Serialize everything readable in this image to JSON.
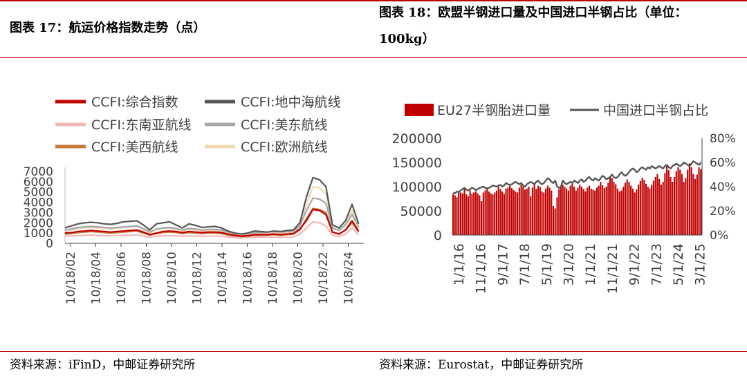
{
  "left_panel": {
    "title": "图表 17：航运价格指数走势（点）",
    "source": "资料来源：iFinD，中邮证券研究所"
  },
  "right_panel": {
    "title": "图表 18：欧盟半钢进口量及中国进口半钢占比（单位：100kg）",
    "source": "资料来源：Eurostat，中邮证券研究所"
  },
  "colors": {
    "accent_red": "#c00000",
    "ccfi_composite": "#c00000",
    "ccfi_mediterranean": "#555555",
    "ccfi_southeast_asia": "#f2b8b8",
    "ccfi_us_east": "#a6a6a6",
    "ccfi_us_west": "#c27a3f",
    "ccfi_europe": "#f0d9b5",
    "china_share_line": "#555555"
  },
  "chart_data": [
    {
      "type": "line",
      "title": "",
      "legend_position": "top",
      "x_ticks": [
        "10/18/02",
        "10/18/04",
        "10/18/06",
        "10/18/08",
        "10/18/10",
        "10/18/12",
        "10/18/14",
        "10/18/16",
        "10/18/18",
        "10/18/20",
        "10/18/22",
        "10/18/24"
      ],
      "y_ticks": [
        0,
        1000,
        2000,
        3000,
        4000,
        5000,
        6000,
        7000
      ],
      "ylim": [
        0,
        7000
      ],
      "x_years": [
        2002.8,
        2003.3,
        2003.8,
        2004.3,
        2004.8,
        2005.3,
        2005.8,
        2006.3,
        2006.8,
        2007.3,
        2007.8,
        2008.3,
        2008.8,
        2009.3,
        2009.8,
        2010.3,
        2010.8,
        2011.3,
        2011.8,
        2012.3,
        2012.8,
        2013.3,
        2013.8,
        2014.3,
        2014.8,
        2015.3,
        2015.8,
        2016.3,
        2016.8,
        2017.3,
        2017.8,
        2018.3,
        2018.8,
        2019.3,
        2019.8,
        2020.3,
        2020.8,
        2021.3,
        2021.8,
        2022.3,
        2022.8,
        2023.3,
        2023.8,
        2024.3,
        2024.8,
        2025.3
      ],
      "series": [
        {
          "name": "CCFI:综合指数",
          "values": [
            1000,
            1050,
            1150,
            1200,
            1250,
            1200,
            1150,
            1100,
            1150,
            1200,
            1250,
            1300,
            1100,
            850,
            1000,
            1150,
            1200,
            1150,
            1050,
            1150,
            1100,
            1050,
            1100,
            1100,
            1050,
            900,
            800,
            700,
            750,
            850,
            850,
            850,
            900,
            850,
            900,
            950,
            1400,
            2200,
            3300,
            3200,
            2800,
            1100,
            900,
            1300,
            2200,
            1200
          ]
        },
        {
          "name": "CCFI:地中海航线",
          "values": [
            1500,
            1700,
            1900,
            2000,
            2050,
            2000,
            1900,
            1850,
            1950,
            2100,
            2150,
            2200,
            1800,
            1300,
            1900,
            2000,
            2100,
            1800,
            1500,
            1900,
            1750,
            1550,
            1600,
            1650,
            1500,
            1200,
            1000,
            900,
            1000,
            1200,
            1150,
            1100,
            1200,
            1150,
            1250,
            1300,
            2000,
            4500,
            6400,
            6200,
            5500,
            1800,
            1500,
            2200,
            3800,
            1900
          ]
        },
        {
          "name": "CCFI:东南亚航线",
          "values": [
            700,
            720,
            750,
            780,
            800,
            780,
            760,
            740,
            760,
            780,
            800,
            820,
            720,
            600,
            700,
            750,
            760,
            740,
            700,
            720,
            700,
            680,
            690,
            700,
            680,
            620,
            560,
            520,
            560,
            600,
            600,
            600,
            620,
            600,
            620,
            640,
            900,
            1500,
            2100,
            2000,
            1700,
            800,
            650,
            900,
            1500,
            800
          ]
        },
        {
          "name": "CCFI:美东航线",
          "values": [
            1300,
            1400,
            1550,
            1600,
            1650,
            1600,
            1550,
            1500,
            1550,
            1600,
            1650,
            1700,
            1450,
            1100,
            1400,
            1500,
            1550,
            1450,
            1300,
            1450,
            1400,
            1300,
            1350,
            1350,
            1300,
            1100,
            1000,
            900,
            950,
            1050,
            1050,
            1100,
            1150,
            1100,
            1150,
            1200,
            1700,
            3200,
            4400,
            4300,
            3900,
            1500,
            1300,
            1800,
            2800,
            1600
          ]
        },
        {
          "name": "CCFI:美西航线",
          "values": [
            900,
            950,
            1050,
            1100,
            1150,
            1100,
            1050,
            1000,
            1050,
            1100,
            1150,
            1200,
            1000,
            800,
            950,
            1050,
            1100,
            1050,
            950,
            1050,
            1000,
            950,
            1000,
            1000,
            950,
            800,
            720,
            650,
            700,
            780,
            780,
            800,
            850,
            800,
            850,
            900,
            1300,
            2400,
            3400,
            3300,
            3000,
            1100,
            900,
            1300,
            2000,
            1100
          ]
        },
        {
          "name": "CCFI:欧洲航线",
          "values": [
            1200,
            1300,
            1450,
            1500,
            1550,
            1500,
            1450,
            1400,
            1450,
            1550,
            1600,
            1650,
            1350,
            1000,
            1350,
            1450,
            1500,
            1350,
            1150,
            1400,
            1300,
            1200,
            1250,
            1250,
            1150,
            950,
            800,
            750,
            850,
            950,
            950,
            950,
            1000,
            950,
            1050,
            1100,
            1700,
            3800,
            5500,
            5400,
            4800,
            1500,
            1200,
            1900,
            3200,
            1500
          ]
        }
      ]
    },
    {
      "type": "bar+line",
      "title": "",
      "legend_position": "top",
      "x_ticks": [
        "1/1/16",
        "11/1/16",
        "9/1/17",
        "7/1/18",
        "5/1/19",
        "3/1/20",
        "1/1/21",
        "11/1/21",
        "9/1/22",
        "7/1/23",
        "5/1/24",
        "3/1/25"
      ],
      "y_left_ticks": [
        "0",
        "50000",
        "100000",
        "150000",
        "200000"
      ],
      "y_right_ticks": [
        "0%",
        "20%",
        "40%",
        "60%",
        "80%"
      ],
      "ylim_left": [
        0,
        200000
      ],
      "ylim_right": [
        0,
        0.8
      ],
      "series": [
        {
          "name": "EU27半钢胎进口量",
          "type": "bar",
          "axis": "left",
          "values": [
            85000,
            82000,
            78000,
            90000,
            88000,
            86000,
            95000,
            84000,
            80000,
            92000,
            85000,
            88000,
            90000,
            86000,
            82000,
            70000,
            88000,
            92000,
            95000,
            90000,
            86000,
            84000,
            88000,
            92000,
            100000,
            95000,
            90000,
            85000,
            96000,
            98000,
            102000,
            97000,
            93000,
            90000,
            88000,
            98000,
            104000,
            100000,
            94000,
            96000,
            100000,
            80000,
            98000,
            105000,
            95000,
            102000,
            99000,
            90000,
            88000,
            96000,
            102000,
            98000,
            92000,
            60000,
            55000,
            78000,
            95000,
            99000,
            104000,
            100000,
            96000,
            92000,
            102000,
            106000,
            100000,
            92000,
            98000,
            104000,
            100000,
            95000,
            90000,
            98000,
            102000,
            96000,
            94000,
            92000,
            98000,
            102000,
            110000,
            103000,
            97000,
            100000,
            108000,
            120000,
            118000,
            110000,
            105000,
            96000,
            90000,
            92000,
            100000,
            108000,
            115000,
            110000,
            102000,
            96000,
            88000,
            94000,
            104000,
            112000,
            118000,
            114000,
            106000,
            100000,
            96000,
            104000,
            112000,
            120000,
            126000,
            116000,
            104000,
            110000,
            128000,
            142000,
            134000,
            120000,
            110000,
            120000,
            132000,
            140000,
            135000,
            126000,
            110000,
            118000,
            135000,
            148000,
            140000,
            126000,
            116000,
            125000,
            140000,
            136000
          ]
        },
        {
          "name": "中国进口半钢占比",
          "type": "line",
          "axis": "right",
          "values": [
            0.35,
            0.345,
            0.36,
            0.355,
            0.37,
            0.38,
            0.39,
            0.375,
            0.37,
            0.38,
            0.39,
            0.385,
            0.37,
            0.38,
            0.39,
            0.395,
            0.4,
            0.39,
            0.385,
            0.39,
            0.4,
            0.41,
            0.405,
            0.4,
            0.41,
            0.415,
            0.4,
            0.41,
            0.43,
            0.42,
            0.415,
            0.42,
            0.43,
            0.44,
            0.43,
            0.42,
            0.43,
            0.41,
            0.4,
            0.42,
            0.43,
            0.44,
            0.43,
            0.42,
            0.44,
            0.45,
            0.43,
            0.42,
            0.43,
            0.45,
            0.47,
            0.46,
            0.44,
            0.43,
            0.45,
            0.4,
            0.39,
            0.4,
            0.45,
            0.43,
            0.42,
            0.43,
            0.44,
            0.43,
            0.45,
            0.44,
            0.43,
            0.45,
            0.46,
            0.44,
            0.45,
            0.47,
            0.48,
            0.46,
            0.45,
            0.47,
            0.46,
            0.45,
            0.47,
            0.49,
            0.48,
            0.46,
            0.47,
            0.48,
            0.5,
            0.48,
            0.47,
            0.48,
            0.5,
            0.52,
            0.5,
            0.49,
            0.5,
            0.52,
            0.54,
            0.55,
            0.54,
            0.52,
            0.53,
            0.55,
            0.56,
            0.55,
            0.54,
            0.56,
            0.55,
            0.57,
            0.56,
            0.55,
            0.56,
            0.57,
            0.56,
            0.55,
            0.57,
            0.58,
            0.56,
            0.55,
            0.57,
            0.58,
            0.59,
            0.58,
            0.57,
            0.58,
            0.6,
            0.59,
            0.58,
            0.57,
            0.59,
            0.61,
            0.6,
            0.59,
            0.58,
            0.6
          ]
        }
      ]
    }
  ]
}
